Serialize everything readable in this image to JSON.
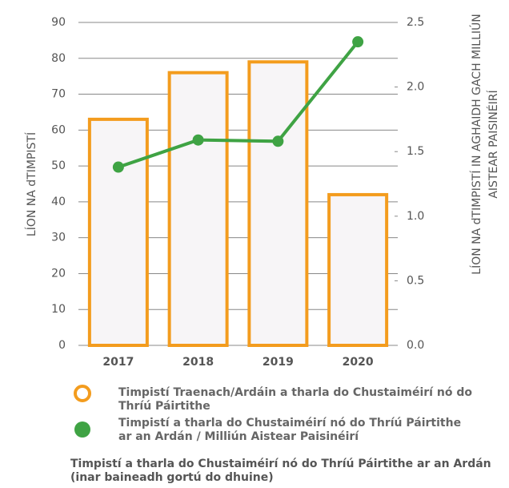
{
  "chart_data": {
    "type": "bar",
    "categories": [
      "2017",
      "2018",
      "2019",
      "2020"
    ],
    "series": [
      {
        "name": "Timpistí Traenach/Ardáin a tharla do Chustaiméirí nó do Thríú Páirtithe",
        "type": "bar",
        "color": "#f39c1e",
        "values": [
          63,
          76,
          79,
          42
        ]
      },
      {
        "name": "Timpistí a tharla do Chustaiméirí nó do Thríú Páirtithe ar an Ardán / Milliún Aistear Paisinéirí",
        "type": "line",
        "axis": "y2",
        "color": "#3fa344",
        "values": [
          1.38,
          1.59,
          1.58,
          2.35
        ]
      }
    ],
    "ylabel": "LÍON NA dTIMPISTÍ",
    "y2label": [
      "LÍON NA dTIMPISTÍ IN AGHAIDH GACH MILLIÚN",
      "AISTEAR PAISINÉIRÍ"
    ],
    "ylim": [
      0,
      90
    ],
    "yticks": [
      0,
      10,
      20,
      30,
      40,
      50,
      60,
      70,
      80,
      90
    ],
    "y2lim": [
      0,
      2.5
    ],
    "y2ticks": [
      {
        "value": 0,
        "label": "0.0"
      },
      0.5,
      {
        "value": 1,
        "label": "1.0"
      },
      1.5,
      {
        "value": 2,
        "label": "2.0"
      },
      2.5
    ],
    "grid": true,
    "note": "Timpistí a tharla do Chustaiméirí nó do Thríú Páirtithe ar an Ardán (inar baineadh gortú do dhuine)"
  }
}
